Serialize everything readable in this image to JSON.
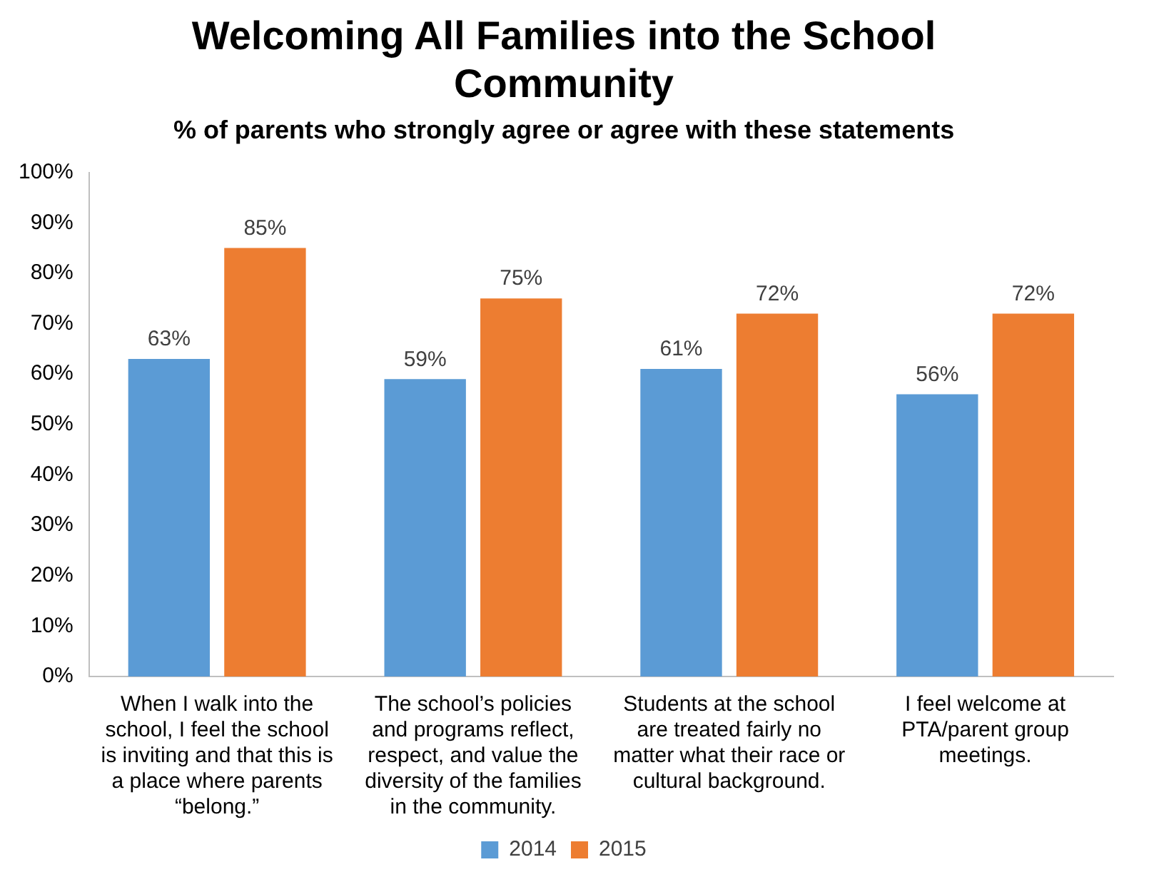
{
  "chart_data": {
    "type": "bar",
    "title": "Welcoming All Families into the School Community",
    "subtitle": "% of parents who strongly agree or agree with these statements",
    "categories": [
      "When I walk into the school, I feel the school is inviting and that this is a place where parents “belong.”",
      "The school’s policies and programs reflect, respect, and value the diversity of the families in the community.",
      "Students at the school are treated fairly no matter what their race or cultural background.",
      "I feel welcome at PTA/parent group meetings."
    ],
    "series": [
      {
        "name": "2014",
        "color": "#5b9bd5",
        "values": [
          63,
          59,
          61,
          56
        ],
        "value_labels": [
          "63%",
          "59%",
          "61%",
          "56%"
        ]
      },
      {
        "name": "2015",
        "color": "#ed7d31",
        "values": [
          85,
          75,
          72,
          72
        ],
        "value_labels": [
          "85%",
          "75%",
          "72%",
          "72%"
        ]
      }
    ],
    "ylim": [
      0,
      100
    ],
    "yticks": [
      {
        "value": 0,
        "label": "0%"
      },
      {
        "value": 10,
        "label": "10%"
      },
      {
        "value": 20,
        "label": "20%"
      },
      {
        "value": 30,
        "label": "30%"
      },
      {
        "value": 40,
        "label": "40%"
      },
      {
        "value": 50,
        "label": "50%"
      },
      {
        "value": 60,
        "label": "60%"
      },
      {
        "value": 70,
        "label": "70%"
      },
      {
        "value": 80,
        "label": "80%"
      },
      {
        "value": 90,
        "label": "90%"
      },
      {
        "value": 100,
        "label": "100%"
      }
    ],
    "grid": false,
    "legend": "bottom"
  }
}
